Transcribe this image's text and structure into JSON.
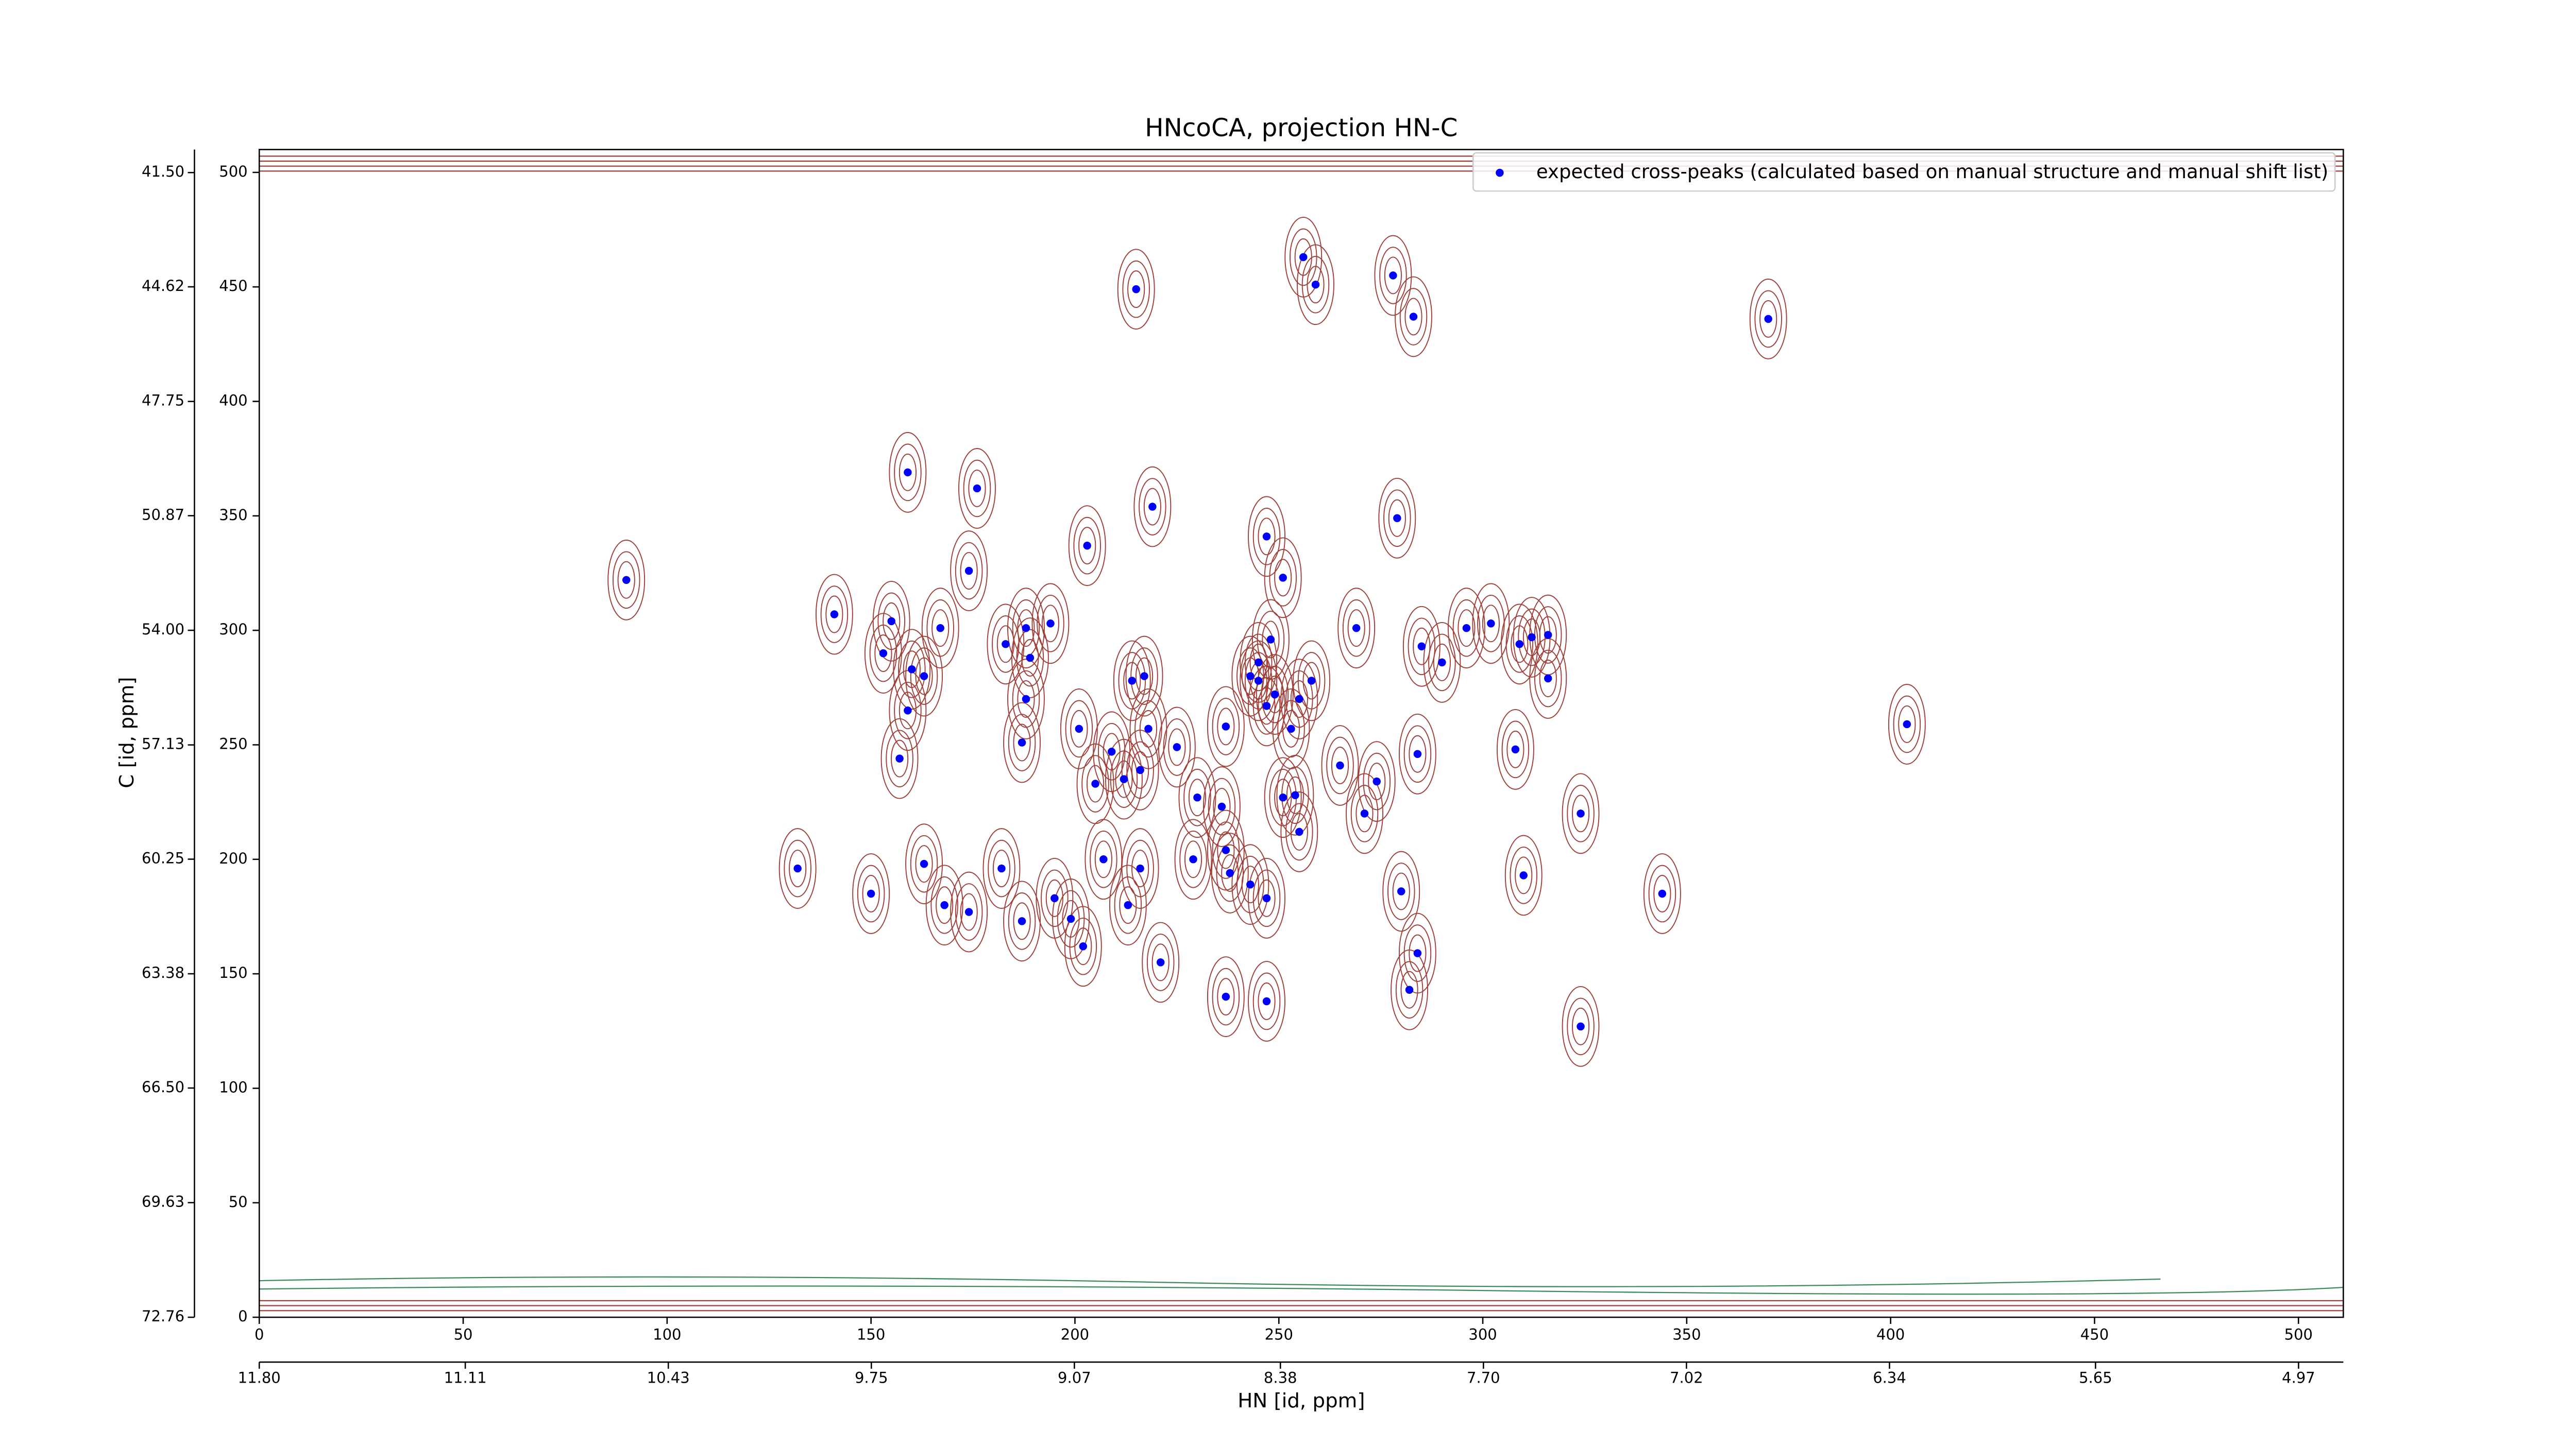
{
  "chart_data": {
    "type": "scatter",
    "title": "HNcoCA, projection HN-C",
    "xlabel": "HN [id, ppm]",
    "ylabel": "C [id, ppm]",
    "xlim": [
      0,
      511
    ],
    "ylim": [
      0,
      510
    ],
    "xticks": [
      0,
      50,
      100,
      150,
      200,
      250,
      300,
      350,
      400,
      450,
      500
    ],
    "yticks": [
      0,
      50,
      100,
      150,
      200,
      250,
      300,
      350,
      400,
      450,
      500
    ],
    "x2lim": [
      11.8,
      4.82
    ],
    "x2ticks": [
      {
        "value": 11.8,
        "label": "11.80"
      },
      11.11,
      10.43,
      9.75,
      9.07,
      8.38,
      {
        "value": 7.7,
        "label": "7.70"
      },
      7.02,
      6.34,
      5.65,
      4.97
    ],
    "y2lim": [
      72.76,
      40.87
    ],
    "y2ticks": [
      72.76,
      69.63,
      {
        "value": 66.5,
        "label": "66.50"
      },
      63.38,
      60.25,
      57.13,
      {
        "value": 54,
        "label": "54.00"
      },
      50.87,
      47.75,
      44.62,
      {
        "value": 41.5,
        "label": "41.50"
      }
    ],
    "legend": "upper right",
    "series": [
      {
        "name": "expected cross-peaks (calculated based on manual structure and manual shift list)",
        "color": "#0000ff",
        "x": [
          90,
          141,
          132,
          150,
          159,
          176,
          174,
          203,
          215,
          219,
          256,
          259,
          278,
          283,
          370,
          247,
          251,
          279,
          155,
          167,
          153,
          160,
          163,
          159,
          157,
          183,
          188,
          194,
          189,
          188,
          187,
          201,
          214,
          217,
          209,
          218,
          225,
          205,
          212,
          216,
          248,
          245,
          243,
          245,
          249,
          247,
          255,
          258,
          253,
          237,
          269,
          265,
          274,
          271,
          284,
          285,
          290,
          296,
          302,
          309,
          312,
          316,
          316,
          308,
          310,
          324,
          324,
          344,
          404,
          230,
          236,
          251,
          254,
          255,
          229,
          237,
          238,
          243,
          247,
          207,
          216,
          213,
          221,
          195,
          199,
          202,
          182,
          187,
          163,
          168,
          174,
          280,
          284,
          282,
          237,
          247
        ],
        "y": [
          322,
          307,
          196,
          185,
          369,
          362,
          326,
          337,
          449,
          354,
          463,
          451,
          455,
          437,
          436,
          341,
          323,
          349,
          304,
          301,
          290,
          283,
          280,
          265,
          244,
          294,
          301,
          303,
          288,
          270,
          251,
          257,
          278,
          280,
          247,
          257,
          249,
          233,
          235,
          239,
          296,
          286,
          280,
          278,
          272,
          267,
          270,
          278,
          257,
          258,
          301,
          241,
          234,
          220,
          246,
          293,
          286,
          301,
          303,
          294,
          297,
          298,
          279,
          248,
          193,
          220,
          127,
          185,
          259,
          227,
          223,
          227,
          228,
          212,
          200,
          204,
          194,
          189,
          183,
          200,
          196,
          180,
          155,
          183,
          174,
          162,
          196,
          173,
          198,
          180,
          177,
          186,
          159,
          143,
          140,
          138
        ]
      }
    ]
  }
}
